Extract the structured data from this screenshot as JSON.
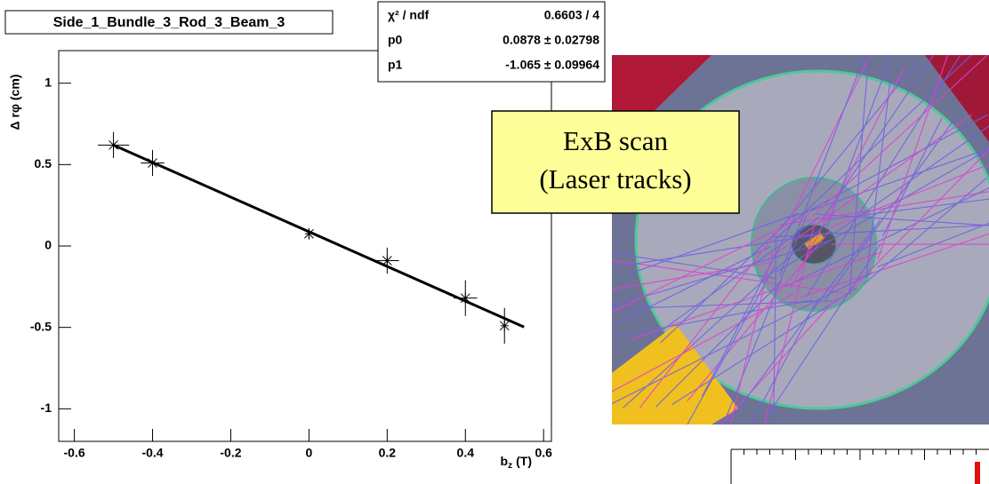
{
  "chart_data": {
    "type": "scatter",
    "title": "Side_1_Bundle_3_Rod_3_Beam_3",
    "y_label": "Δ rφ (cm)",
    "x_label": {
      "base": "b",
      "sub": "z",
      "unit": "(T)"
    },
    "x": [
      -0.5,
      -0.4,
      0,
      0.2,
      0.4,
      0.5
    ],
    "series": [
      {
        "color": "#000000",
        "values": [
          0.62,
          0.51,
          0.075,
          -0.09,
          -0.32,
          -0.49
        ],
        "y_errors": [
          0.08,
          0.08,
          0.035,
          0.08,
          0.11,
          0.11
        ],
        "x_errors": [
          0.04,
          0.03,
          0.01,
          0.03,
          0.03,
          0.01
        ]
      }
    ],
    "fit": {
      "x": [
        -0.5,
        0.55
      ],
      "y": [
        0.62,
        -0.498
      ]
    },
    "stats": [
      {
        "name": "χ² / ndf",
        "value": "0.6603 / 4"
      },
      {
        "name": "p0",
        "value": "0.0878 ± 0.02798"
      },
      {
        "name": "p1",
        "value": "-1.065 ± 0.09964"
      }
    ],
    "xlim": [
      -0.64,
      0.62
    ],
    "ylim": [
      -1.2,
      1.2
    ],
    "xticks": [
      -0.6,
      -0.4,
      -0.2,
      0,
      0.2,
      0.4,
      0.6
    ],
    "yticks": [
      -1,
      -0.5,
      0,
      0.5,
      1
    ]
  },
  "callout": {
    "line1": "ExB scan",
    "line2": "(Laser tracks)"
  }
}
